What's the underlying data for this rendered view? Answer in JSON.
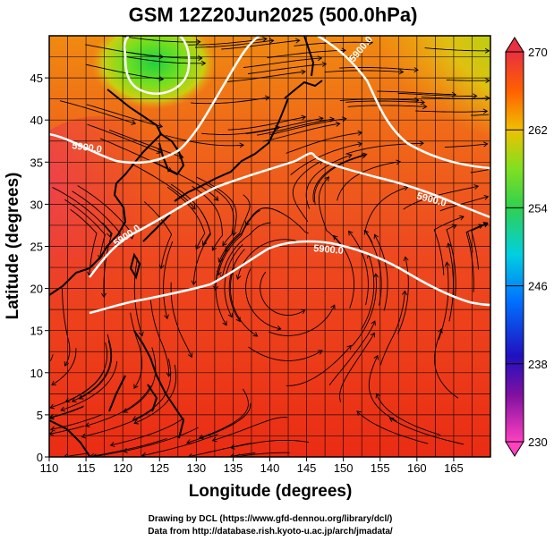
{
  "figure": {
    "title": "GSM 12Z20Jun2025 (500.0hPa)",
    "xlabel": "Longitude (degrees)",
    "ylabel": "Latitude  (degrees)",
    "credit_line1": "Drawing by DCL (https://www.gfd-dennou.org/library/dcl/)",
    "credit_line2": "Data from http://database.rish.kyoto-u.ac.jp/arch/jmadata/"
  },
  "axes": {
    "lon_range": [
      110,
      170
    ],
    "lat_range": [
      0,
      50
    ],
    "lon_ticks": [
      "110",
      "115",
      "120",
      "125",
      "130",
      "135",
      "140",
      "145",
      "150",
      "155",
      "160",
      "165"
    ],
    "lat_ticks": [
      "0",
      "5",
      "10",
      "15",
      "20",
      "25",
      "30",
      "35",
      "40",
      "45"
    ],
    "grid": true
  },
  "colorbar": {
    "labels": [
      "270",
      "262",
      "254",
      "246",
      "238",
      "230"
    ],
    "range": [
      230,
      270
    ],
    "colors": [
      "#ff40c0",
      "#2a10a0",
      "#0060ff",
      "#00d0e0",
      "#30d060",
      "#80e020",
      "#f0c000",
      "#ff6000",
      "#e83030"
    ]
  },
  "contours": [
    {
      "label": "5900.0"
    },
    {
      "label": "5900.0"
    },
    {
      "label": "5900.0"
    },
    {
      "label": "5900.0"
    },
    {
      "label": "5900.0"
    }
  ]
}
